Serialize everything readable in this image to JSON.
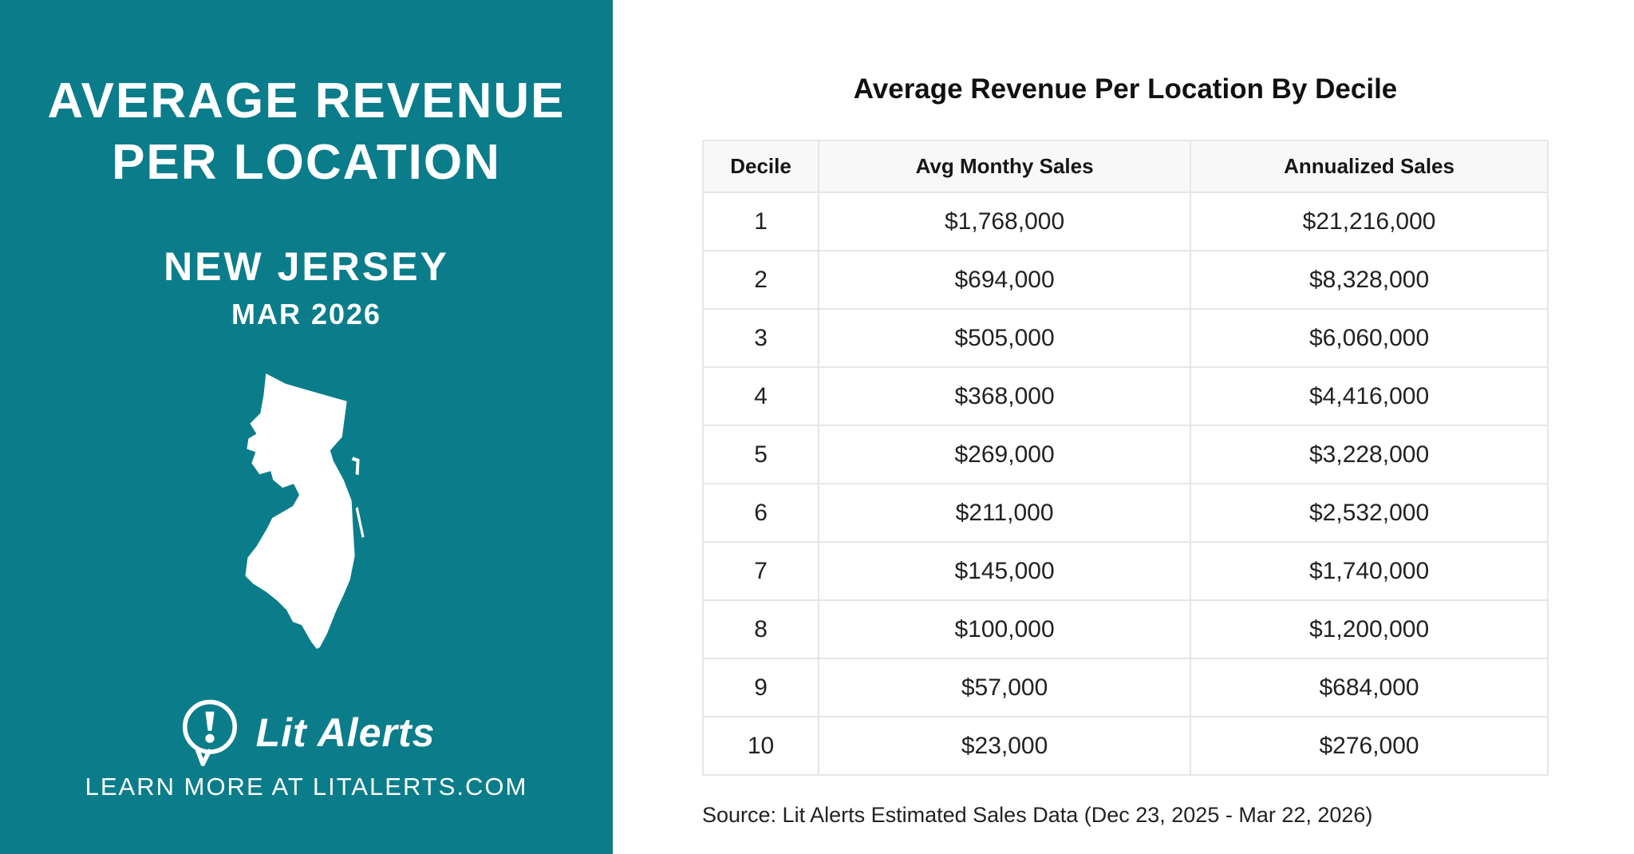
{
  "colors": {
    "accent_teal": "#0B7D8A",
    "table_border": "#e6e6e6",
    "header_bg": "#f8f8f8",
    "text": "#1e1e1e"
  },
  "left_panel": {
    "title_line1": "AVERAGE REVENUE",
    "title_line2": "PER LOCATION",
    "state": "NEW JERSEY",
    "period": "MAR 2026",
    "map": "new-jersey-silhouette",
    "logo": "lit-alerts-speech-bubble-exclamation",
    "brand": "Lit Alerts",
    "tagline": "LEARN MORE AT LITALERTS.COM"
  },
  "main": {
    "title": "Average Revenue Per Location By Decile",
    "source": "Source: Lit Alerts Estimated Sales Data (Dec 23, 2025 - Mar 22, 2026)"
  },
  "chart_data": {
    "type": "table",
    "title": "Average Revenue Per Location By Decile",
    "columns": [
      "Decile",
      "Avg Monthy Sales",
      "Annualized Sales"
    ],
    "rows": [
      [
        "1",
        "$1,768,000",
        "$21,216,000"
      ],
      [
        "2",
        "$694,000",
        "$8,328,000"
      ],
      [
        "3",
        "$505,000",
        "$6,060,000"
      ],
      [
        "4",
        "$368,000",
        "$4,416,000"
      ],
      [
        "5",
        "$269,000",
        "$3,228,000"
      ],
      [
        "6",
        "$211,000",
        "$2,532,000"
      ],
      [
        "7",
        "$145,000",
        "$1,740,000"
      ],
      [
        "8",
        "$100,000",
        "$1,200,000"
      ],
      [
        "9",
        "$57,000",
        "$684,000"
      ],
      [
        "10",
        "$23,000",
        "$276,000"
      ]
    ],
    "numeric": {
      "decile": [
        1,
        2,
        3,
        4,
        5,
        6,
        7,
        8,
        9,
        10
      ],
      "avg_monthly_sales": [
        1768000,
        694000,
        505000,
        368000,
        269000,
        211000,
        145000,
        100000,
        57000,
        23000
      ],
      "annualized_sales": [
        21216000,
        8328000,
        6060000,
        4416000,
        3228000,
        2532000,
        1740000,
        1200000,
        684000,
        276000
      ]
    }
  }
}
